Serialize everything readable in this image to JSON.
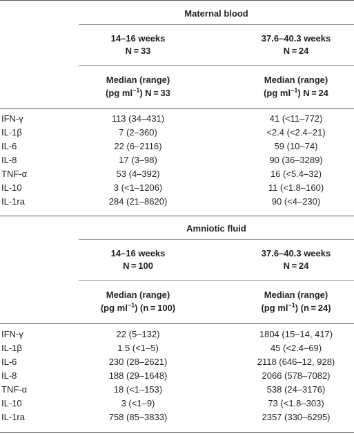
{
  "sections": [
    {
      "title": "Maternal blood",
      "col1": {
        "weeks": "14–16 weeks",
        "n": "N = 33",
        "hdr1": "Median (range)",
        "hdr2a": "(pg ml",
        "sup": "−1",
        "hdr2b": ") N = 33"
      },
      "col2": {
        "weeks": "37.6–40.3 weeks",
        "n": "N = 24",
        "hdr1": "Median (range)",
        "hdr2a": "(pg ml",
        "sup": "−1",
        "hdr2b": ") N = 24"
      },
      "rows": [
        {
          "label": "IFN-γ",
          "v1": "113 (34–431)",
          "v2": "41 (<11–772)"
        },
        {
          "label": "IL-1β",
          "v1": "7 (2–360)",
          "v2": "<2.4 (<2.4–21)"
        },
        {
          "label": "IL-6",
          "v1": "22 (6–2116)",
          "v2": "59 (10–74)"
        },
        {
          "label": "IL-8",
          "v1": "17 (3–98)",
          "v2": "90 (36–3289)"
        },
        {
          "label": "TNF-α",
          "v1": "53 (4–392)",
          "v2": "16 (<5.4–32)"
        },
        {
          "label": "IL-10",
          "v1": "3 (<1–1206)",
          "v2": "11 (<1.8–160)"
        },
        {
          "label": "IL-1ra",
          "v1": "284 (21–8620)",
          "v2": "90 (<4–230)"
        }
      ]
    },
    {
      "title": "Amniotic fluid",
      "col1": {
        "weeks": "14–16 weeks",
        "n": "N = 100",
        "hdr1": "Median (range)",
        "hdr2a": "(pg ml",
        "sup": "−1",
        "hdr2b": ") (n = 100)"
      },
      "col2": {
        "weeks": "37.6–40.3 weeks",
        "n": "N = 24",
        "hdr1": "Median (range)",
        "hdr2a": "(pg ml",
        "sup": "−1",
        "hdr2b": ") (n = 24)"
      },
      "rows": [
        {
          "label": "IFN-γ",
          "v1": "22 (5–132)",
          "v2": "1804 (15–14, 417)"
        },
        {
          "label": "IL-1β",
          "v1": "1.5 (<1–5)",
          "v2": "45 (<2.4–69)"
        },
        {
          "label": "IL-6",
          "v1": "230 (28–2621)",
          "v2": "2118 (646–12, 928)"
        },
        {
          "label": "IL-8",
          "v1": "188 (29–1648)",
          "v2": "2066 (578–7082)"
        },
        {
          "label": "TNF-α",
          "v1": "18 (<1–153)",
          "v2": "538 (24–3176)"
        },
        {
          "label": "IL-10",
          "v1": "3 (<1–9)",
          "v2": "73 (<1.8–303)"
        },
        {
          "label": "IL-1ra",
          "v1": "758 (85–3833)",
          "v2": "2357 (330–6295)"
        }
      ]
    }
  ]
}
